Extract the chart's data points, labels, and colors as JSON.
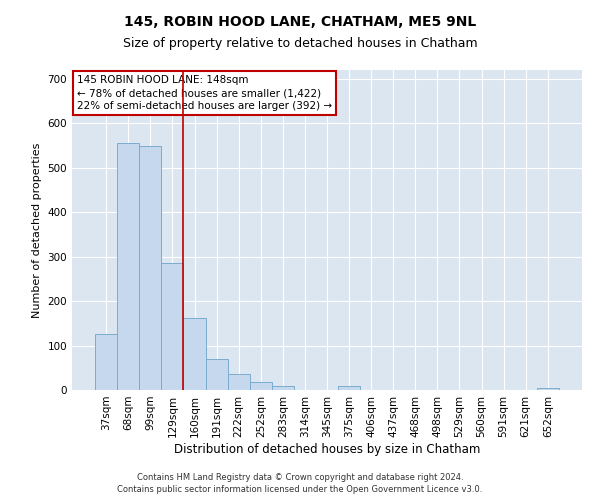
{
  "title": "145, ROBIN HOOD LANE, CHATHAM, ME5 9NL",
  "subtitle": "Size of property relative to detached houses in Chatham",
  "xlabel": "Distribution of detached houses by size in Chatham",
  "ylabel": "Number of detached properties",
  "categories": [
    "37sqm",
    "68sqm",
    "99sqm",
    "129sqm",
    "160sqm",
    "191sqm",
    "222sqm",
    "252sqm",
    "283sqm",
    "314sqm",
    "345sqm",
    "375sqm",
    "406sqm",
    "437sqm",
    "468sqm",
    "498sqm",
    "529sqm",
    "560sqm",
    "591sqm",
    "621sqm",
    "652sqm"
  ],
  "values": [
    125,
    555,
    550,
    285,
    163,
    70,
    35,
    17,
    8,
    0,
    0,
    8,
    0,
    0,
    0,
    0,
    0,
    0,
    0,
    0,
    5
  ],
  "bar_color": "#c5d8ed",
  "bar_edge_color": "#7aacce",
  "vline_color": "#c00000",
  "annotation_text": "145 ROBIN HOOD LANE: 148sqm\n← 78% of detached houses are smaller (1,422)\n22% of semi-detached houses are larger (392) →",
  "annotation_box_color": "#ffffff",
  "annotation_box_edge": "#c00000",
  "ylim": [
    0,
    720
  ],
  "yticks": [
    0,
    100,
    200,
    300,
    400,
    500,
    600,
    700
  ],
  "footer1": "Contains HM Land Registry data © Crown copyright and database right 2024.",
  "footer2": "Contains public sector information licensed under the Open Government Licence v3.0.",
  "plot_bg_color": "#dce6f1",
  "fig_bg_color": "#ffffff",
  "title_fontsize": 10,
  "subtitle_fontsize": 9,
  "xlabel_fontsize": 8.5,
  "ylabel_fontsize": 8,
  "tick_fontsize": 7.5,
  "annot_fontsize": 7.5,
  "footer_fontsize": 6
}
